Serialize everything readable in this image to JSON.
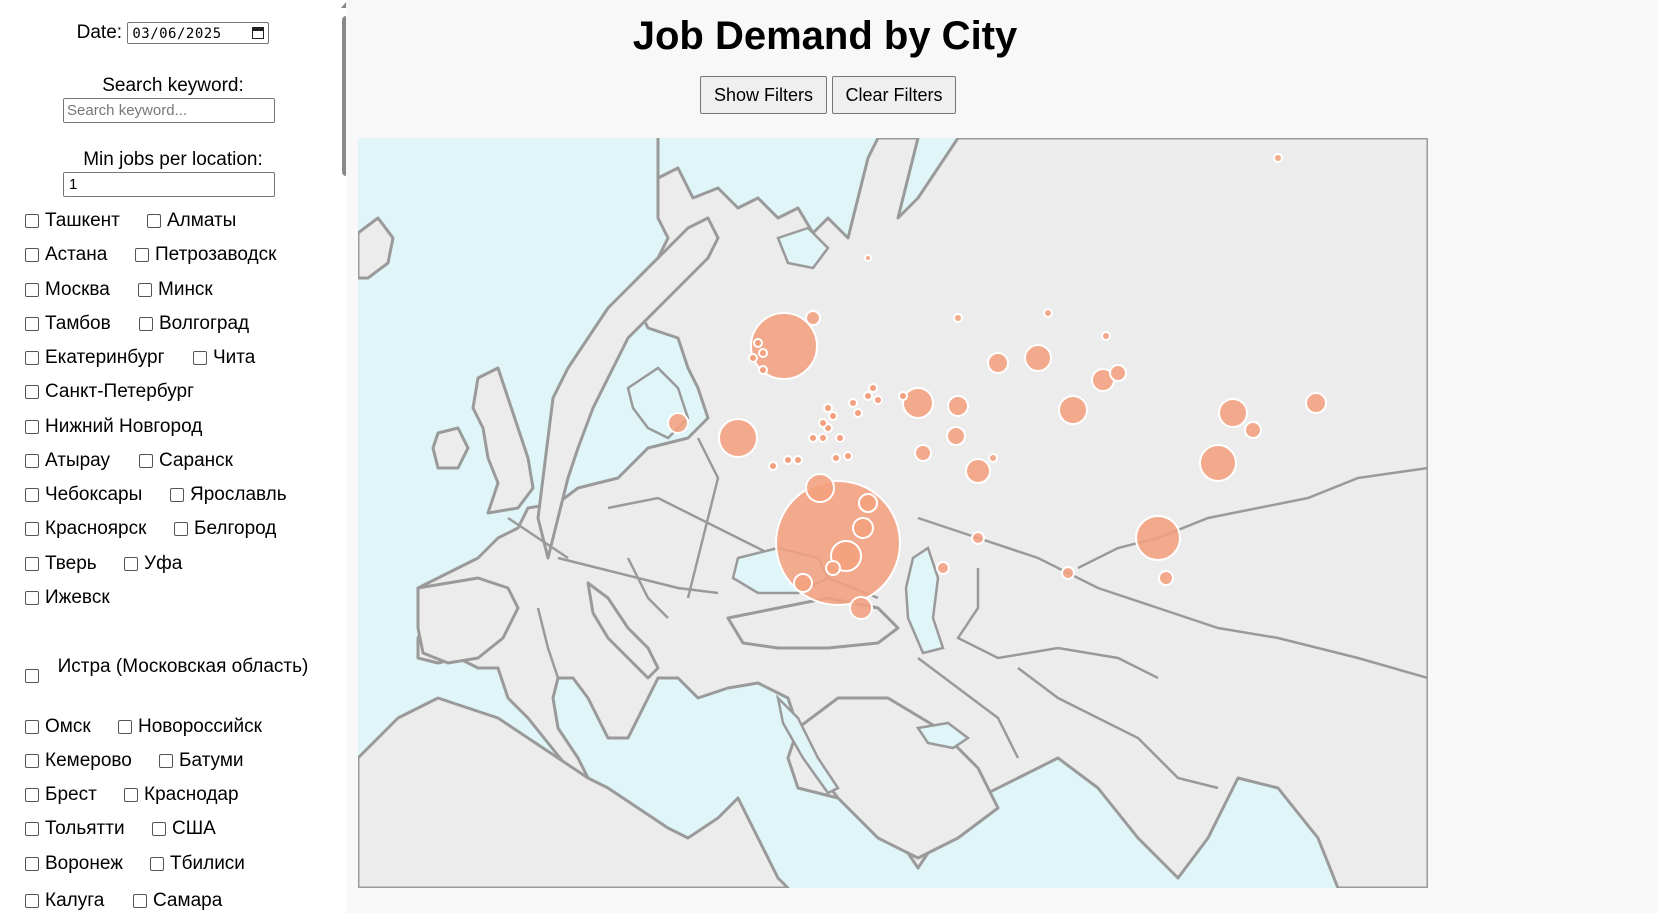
{
  "page": {
    "title": "Job Demand by City"
  },
  "filters": {
    "date_label": "Date:",
    "date_value": "03/06/2025",
    "keyword_label": "Search keyword:",
    "keyword_placeholder": "Search keyword...",
    "min_jobs_label": "Min jobs per location:",
    "min_jobs_value": "1"
  },
  "buttons": {
    "show_filters": "Show Filters",
    "clear_filters": "Clear Filters"
  },
  "cities": [
    [
      "Ташкент",
      "Алматы"
    ],
    [
      "Астана",
      "Петрозаводск"
    ],
    [
      "Москва",
      "Минск"
    ],
    [
      "Тамбов",
      "Волгоград"
    ],
    [
      "Екатеринбург",
      "Чита"
    ],
    [
      "Санкт-Петербург"
    ],
    [
      "Нижний Новгород"
    ],
    [
      "Атырау",
      "Саранск"
    ],
    [
      "Чебоксары",
      "Ярославль"
    ],
    [
      "Красноярск",
      "Белгород"
    ],
    [
      "Тверь",
      "Уфа"
    ],
    [
      "Ижевск"
    ],
    [
      "Истра (Московская область)"
    ],
    [
      "Омск",
      "Новороссийск"
    ],
    [
      "Кемерово",
      "Батуми"
    ],
    [
      "Брест",
      "Краснодар"
    ],
    [
      "Тольятти",
      "США"
    ],
    [
      "Воронеж",
      "Тбилиси"
    ],
    [
      "Калуга",
      "Самара"
    ]
  ],
  "colors": {
    "sea": "#dff5f8",
    "land": "#ececec",
    "border": "#9a9a9a",
    "bubble": "#f4a07e",
    "bubble_stroke": "#ffffff"
  }
}
